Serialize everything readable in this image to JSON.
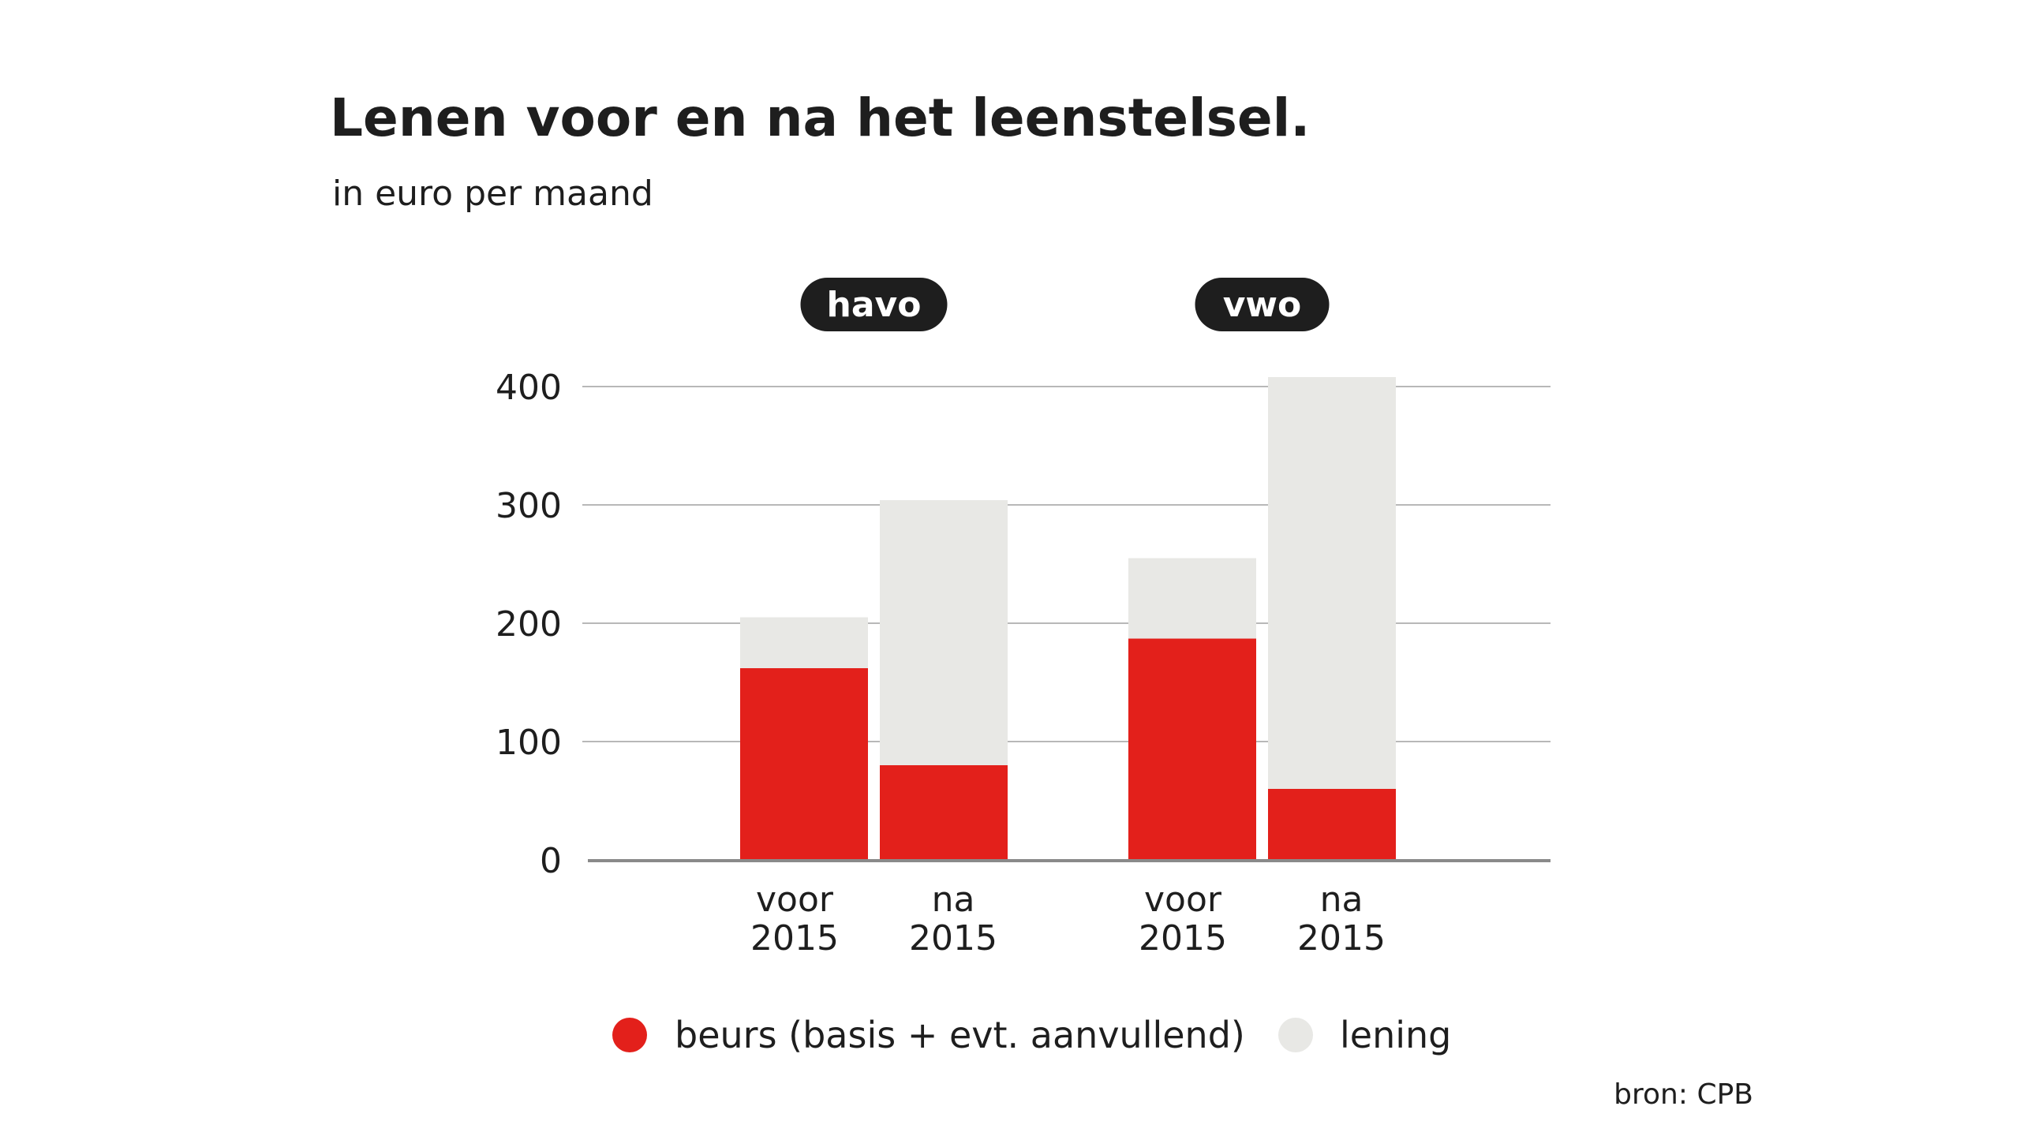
{
  "colors": {
    "beurs": "#e3201b",
    "lening": "#e8e8e5",
    "grid": "#b8b8b8",
    "axis": "#8a8a8a",
    "pill": "#1e1e1e",
    "text": "#1e1e1e"
  },
  "chart_data": {
    "type": "bar",
    "stacked": true,
    "title": "Lenen voor en na het leenstelsel.",
    "subtitle": "in euro per maand",
    "ylim": [
      0,
      400
    ],
    "yticks": [
      0,
      100,
      200,
      300,
      400
    ],
    "groups": [
      {
        "label": "havo",
        "categories": [
          {
            "line1": "voor",
            "line2": "2015",
            "beurs": 162,
            "lening": 43
          },
          {
            "line1": "na",
            "line2": "2015",
            "beurs": 80,
            "lening": 224
          }
        ]
      },
      {
        "label": "vwo",
        "categories": [
          {
            "line1": "voor",
            "line2": "2015",
            "beurs": 187,
            "lening": 68
          },
          {
            "line1": "na",
            "line2": "2015",
            "beurs": 60,
            "lening": 348
          }
        ]
      }
    ],
    "series": [
      {
        "key": "beurs",
        "name": "beurs (basis + evt. aanvullend)"
      },
      {
        "key": "lening",
        "name": "lening"
      }
    ],
    "grid": true,
    "legend_position": "bottom",
    "source": "bron: CPB"
  }
}
